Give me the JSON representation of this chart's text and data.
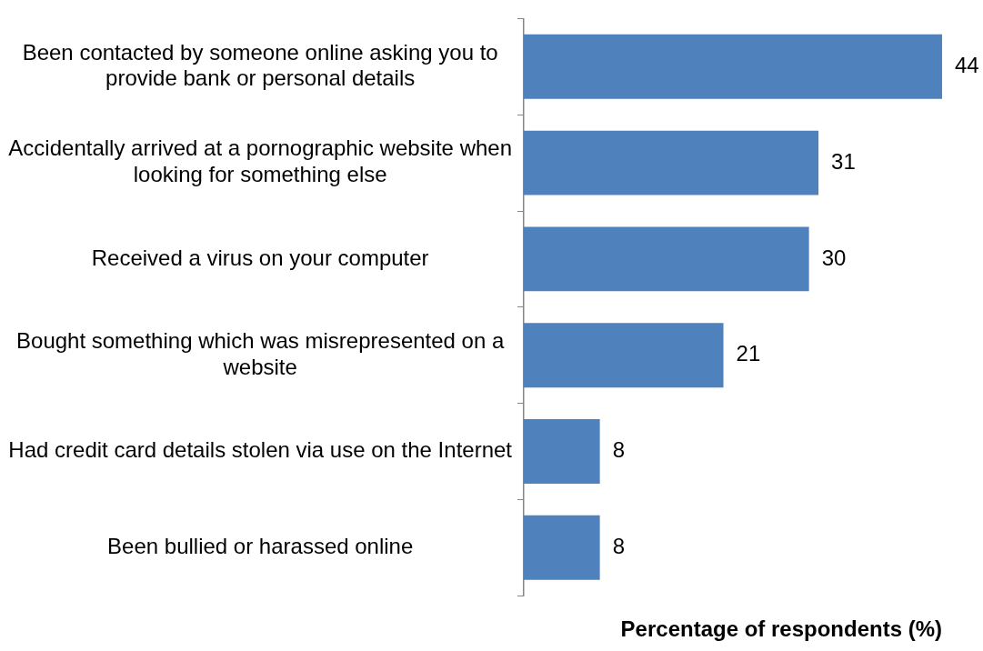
{
  "chart_data": {
    "type": "bar",
    "orientation": "horizontal",
    "xlabel": "Percentage of respondents (%)",
    "categories": [
      "Been contacted by someone online asking you to provide bank or personal details",
      "Accidentally arrived at a pornographic website when looking for something else",
      "Received a virus on your computer",
      "Bought something which was misrepresented on a website",
      "Had credit card details stolen via use on the Internet",
      "Been bullied or harassed online"
    ],
    "values": [
      44,
      31,
      30,
      21,
      8,
      8
    ],
    "color": "#4f81bd",
    "data_labels": true,
    "grid": false,
    "legend": false
  }
}
